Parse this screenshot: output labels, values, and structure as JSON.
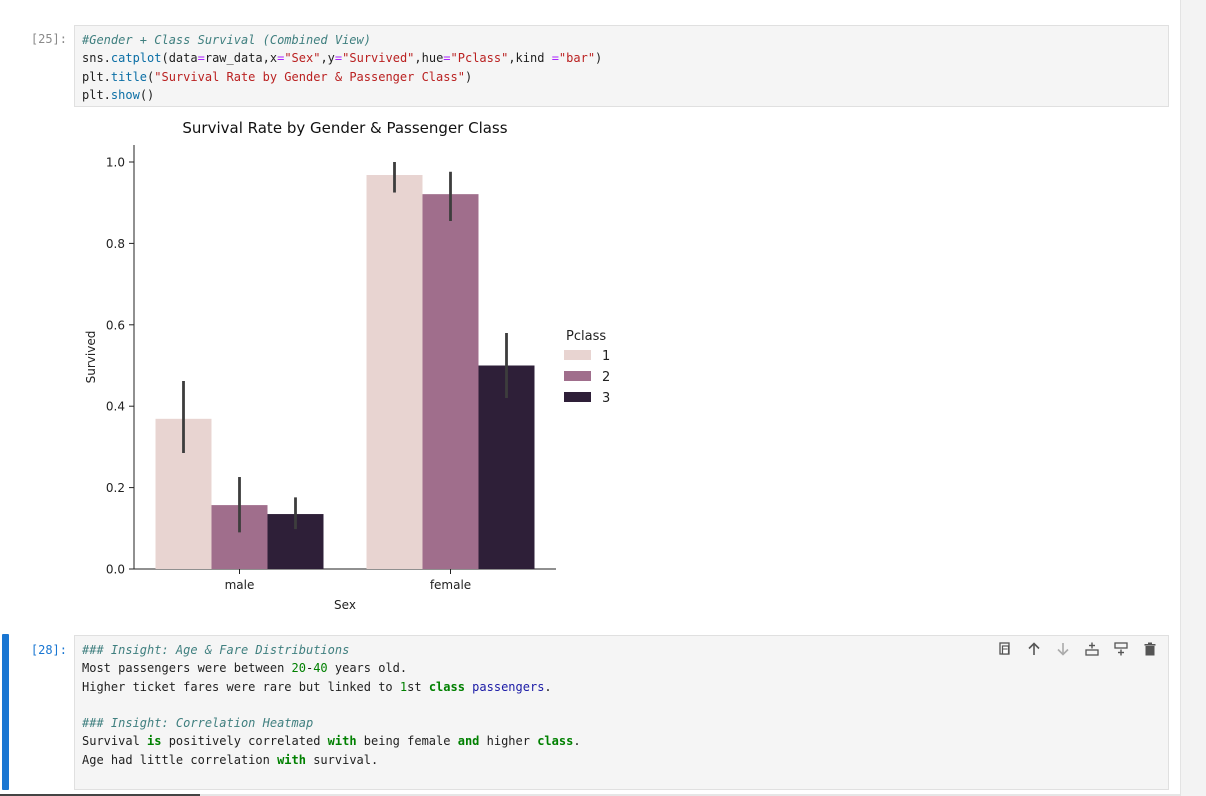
{
  "cell_25": {
    "prompt": "[25]:",
    "lines": [
      [
        {
          "t": "#Gender + Class Survival (Combined View)",
          "c": "c-comment"
        }
      ],
      [
        {
          "t": "sns.",
          "c": ""
        },
        {
          "t": "catplot",
          "c": "c-fn"
        },
        {
          "t": "(data",
          "c": ""
        },
        {
          "t": "=",
          "c": "c-op"
        },
        {
          "t": "raw_data,x",
          "c": ""
        },
        {
          "t": "=",
          "c": "c-op"
        },
        {
          "t": "\"Sex\"",
          "c": "c-str"
        },
        {
          "t": ",y",
          "c": ""
        },
        {
          "t": "=",
          "c": "c-op"
        },
        {
          "t": "\"Survived\"",
          "c": "c-str"
        },
        {
          "t": ",hue",
          "c": ""
        },
        {
          "t": "=",
          "c": "c-op"
        },
        {
          "t": "\"Pclass\"",
          "c": "c-str"
        },
        {
          "t": ",kind ",
          "c": ""
        },
        {
          "t": "=",
          "c": "c-op"
        },
        {
          "t": "\"bar\"",
          "c": "c-str"
        },
        {
          "t": ")",
          "c": ""
        }
      ],
      [
        {
          "t": "plt.",
          "c": ""
        },
        {
          "t": "title",
          "c": "c-fn"
        },
        {
          "t": "(",
          "c": ""
        },
        {
          "t": "\"Survival Rate by Gender & Passenger Class\"",
          "c": "c-str"
        },
        {
          "t": ")",
          "c": ""
        }
      ],
      [
        {
          "t": "plt.",
          "c": ""
        },
        {
          "t": "show",
          "c": "c-fn"
        },
        {
          "t": "()",
          "c": ""
        }
      ]
    ]
  },
  "cell_28": {
    "prompt": "[28]:",
    "lines": [
      [
        {
          "t": "### Insight: Age & Fare Distributions",
          "c": "c-comment"
        }
      ],
      [
        {
          "t": "Most passengers were between ",
          "c": ""
        },
        {
          "t": "20",
          "c": "c-num"
        },
        {
          "t": "-",
          "c": ""
        },
        {
          "t": "40",
          "c": "c-num"
        },
        {
          "t": " years old.",
          "c": ""
        }
      ],
      [
        {
          "t": "Higher ticket fares were rare but linked to ",
          "c": ""
        },
        {
          "t": "1",
          "c": "c-num"
        },
        {
          "t": "st ",
          "c": ""
        },
        {
          "t": "class",
          "c": "c-kw"
        },
        {
          "t": " ",
          "c": ""
        },
        {
          "t": "passengers",
          "c": "c-link"
        },
        {
          "t": ".",
          "c": ""
        }
      ],
      [
        {
          "t": " ",
          "c": ""
        }
      ],
      [
        {
          "t": "### Insight: Correlation Heatmap",
          "c": "c-comment"
        }
      ],
      [
        {
          "t": "Survival ",
          "c": ""
        },
        {
          "t": "is",
          "c": "c-kw"
        },
        {
          "t": " positively correlated ",
          "c": ""
        },
        {
          "t": "with",
          "c": "c-kw"
        },
        {
          "t": " being female ",
          "c": ""
        },
        {
          "t": "and",
          "c": "c-kw"
        },
        {
          "t": " higher ",
          "c": ""
        },
        {
          "t": "class",
          "c": "c-kw"
        },
        {
          "t": ".",
          "c": ""
        }
      ],
      [
        {
          "t": "Age had little correlation ",
          "c": ""
        },
        {
          "t": "with",
          "c": "c-kw"
        },
        {
          "t": " survival.",
          "c": ""
        }
      ]
    ]
  },
  "toolbar": {
    "icons": [
      "copy-icon",
      "arrow-up-icon",
      "arrow-down-icon",
      "insert-above-icon",
      "insert-below-icon",
      "trash-icon"
    ]
  },
  "chart_data": {
    "type": "bar",
    "title": "Survival Rate by Gender & Passenger Class",
    "xlabel": "Sex",
    "ylabel": "Survived",
    "categories": [
      "male",
      "female"
    ],
    "ylim": [
      0,
      1.05
    ],
    "yticks": [
      "0.0",
      "0.2",
      "0.4",
      "0.6",
      "0.8",
      "1.0"
    ],
    "legend_title": "Pclass",
    "legend_position": "right",
    "series": [
      {
        "name": "1",
        "color": "#e8d4d1",
        "values": [
          0.369,
          0.968
        ],
        "err_low": [
          0.285,
          0.925
        ],
        "err_high": [
          0.462,
          1.0
        ]
      },
      {
        "name": "2",
        "color": "#a06e8c",
        "values": [
          0.157,
          0.921
        ],
        "err_low": [
          0.09,
          0.855
        ],
        "err_high": [
          0.226,
          0.976
        ]
      },
      {
        "name": "3",
        "color": "#2e1f38",
        "values": [
          0.135,
          0.5
        ],
        "err_low": [
          0.098,
          0.42
        ],
        "err_high": [
          0.176,
          0.58
        ]
      }
    ]
  }
}
